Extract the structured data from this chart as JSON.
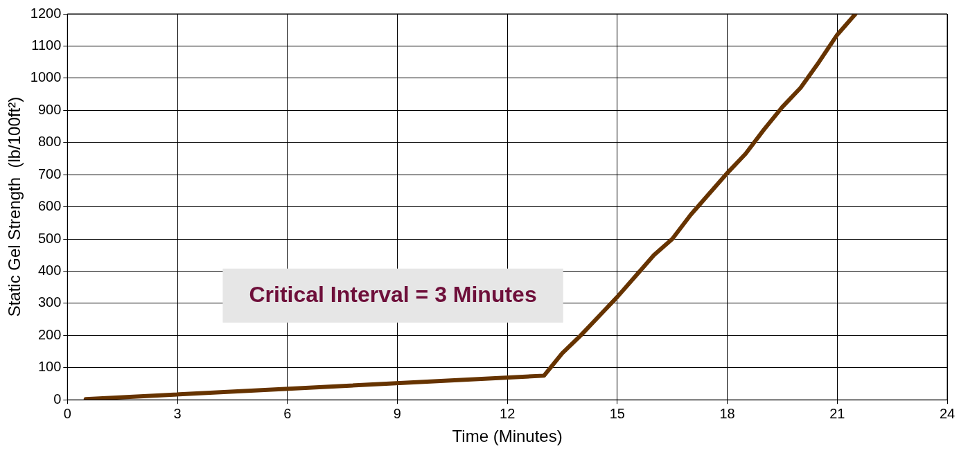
{
  "chart_data": {
    "type": "line",
    "xlabel": "Time (Minutes)",
    "ylabel": "Static Gel Strength  (lb/100ft²)",
    "annotations": [
      "Critical Interval = 3 Minutes"
    ],
    "series": [
      {
        "color": "#663300",
        "x": [
          0.5,
          13,
          13.5,
          14,
          14.5,
          15,
          15.5,
          16,
          16.5,
          17,
          17.5,
          18,
          18.5,
          19,
          19.5,
          20,
          20.5,
          21,
          21.5
        ],
        "values": [
          2,
          75,
          145,
          200,
          260,
          320,
          385,
          450,
          500,
          575,
          640,
          705,
          765,
          840,
          910,
          970,
          1050,
          1135,
          1200
        ]
      }
    ],
    "xlim": [
      0,
      24
    ],
    "xticks": [
      0,
      3,
      6,
      9,
      12,
      15,
      18,
      21,
      24
    ],
    "ylim": [
      0,
      1200
    ],
    "yticks": [
      0,
      100,
      200,
      300,
      400,
      500,
      600,
      700,
      800,
      900,
      1000,
      1100,
      1200
    ],
    "grid": true,
    "legend": false,
    "marker": "none",
    "line_style": "solid"
  }
}
